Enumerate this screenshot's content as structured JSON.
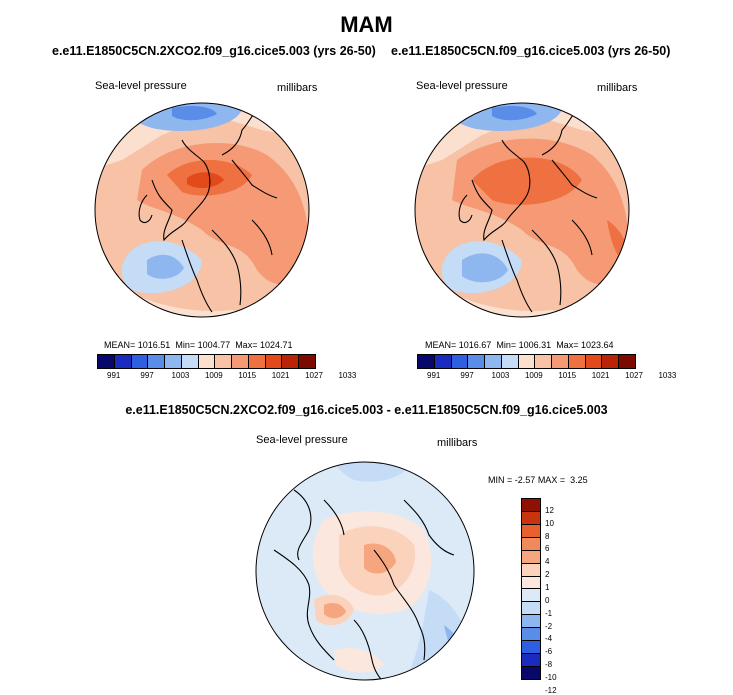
{
  "figure": {
    "title": "MAM",
    "difference_title": "e.e11.E1850C5CN.2XCO2.f09_g16.cice5.003 - e.e11.E1850C5CN.f09_g16.cice5.003"
  },
  "colors": {
    "scale_levels": [
      "#08086b",
      "#1a2bbd",
      "#2e5fe0",
      "#5a8de8",
      "#8fb7ef",
      "#c5dcf7",
      "#fbe0d0",
      "#f7c2a6",
      "#f59a74",
      "#ef7040",
      "#e24a1c",
      "#b92306",
      "#7a0a02"
    ],
    "diff_levels": [
      "#08086b",
      "#1a2bbd",
      "#2e5fe0",
      "#5a8de8",
      "#8fb7ef",
      "#c5dcf7",
      "#dceaf8",
      "#fbe7dd",
      "#fbd2bc",
      "#f6a67e",
      "#f18a5a",
      "#e8602e",
      "#c93410",
      "#8f1104"
    ],
    "coastline": "#000000"
  },
  "panels": [
    {
      "case": "e.e11.E1850C5CN.2XCO2.f09_g16.cice5.003 (yrs 26-50)",
      "variable": "Sea-level pressure",
      "units": "millibars",
      "mean_label": "MEAN=",
      "mean": "1016.51",
      "min_label": "Min=",
      "min": "1004.77",
      "max_label": "Max=",
      "max": "1024.71"
    },
    {
      "case": "e.e11.E1850C5CN.f09_g16.cice5.003 (yrs 26-50)",
      "variable": "Sea-level pressure",
      "units": "millibars",
      "mean_label": "MEAN=",
      "mean": "1016.67",
      "min_label": "Min=",
      "min": "1006.31",
      "max_label": "Max=",
      "max": "1023.64"
    }
  ],
  "difference_panel": {
    "variable": "Sea-level pressure",
    "units": "millibars",
    "min_label": "MIN =",
    "min": "-2.57",
    "max_label": "MAX =",
    "max": "3.25"
  },
  "chart_data": [
    {
      "type": "heatmap",
      "projection": "north polar stereographic",
      "title": "e.e11.E1850C5CN.2XCO2.f09_g16.cice5.003 (yrs 26-50)",
      "variable": "Sea-level pressure",
      "units": "millibars",
      "colorbar_ticks": [
        "991",
        "997",
        "1003",
        "1009",
        "1015",
        "1021",
        "1027",
        "1033"
      ],
      "contour_levels": [
        988,
        991,
        994,
        997,
        1000,
        1003,
        1006,
        1009,
        1012,
        1015,
        1018,
        1021,
        1024,
        1027,
        1030,
        1033
      ],
      "mean": 1016.51,
      "min": 1004.77,
      "max": 1024.71
    },
    {
      "type": "heatmap",
      "projection": "north polar stereographic",
      "title": "e.e11.E1850C5CN.f09_g16.cice5.003 (yrs 26-50)",
      "variable": "Sea-level pressure",
      "units": "millibars",
      "colorbar_ticks": [
        "991",
        "997",
        "1003",
        "1009",
        "1015",
        "1021",
        "1027",
        "1033"
      ],
      "contour_levels": [
        988,
        991,
        994,
        997,
        1000,
        1003,
        1006,
        1009,
        1012,
        1015,
        1018,
        1021,
        1024,
        1027,
        1030,
        1033
      ],
      "mean": 1016.67,
      "min": 1006.31,
      "max": 1023.64
    },
    {
      "type": "heatmap",
      "projection": "north polar stereographic",
      "title": "e.e11.E1850C5CN.2XCO2.f09_g16.cice5.003 - e.e11.E1850C5CN.f09_g16.cice5.003",
      "variable": "Sea-level pressure",
      "units": "millibars",
      "colorbar_ticks": [
        "-12",
        "-10",
        "-8",
        "-6",
        "-4",
        "-2",
        "-1",
        "0",
        "1",
        "2",
        "4",
        "6",
        "8",
        "10",
        "12"
      ],
      "min": -2.57,
      "max": 3.25
    }
  ]
}
